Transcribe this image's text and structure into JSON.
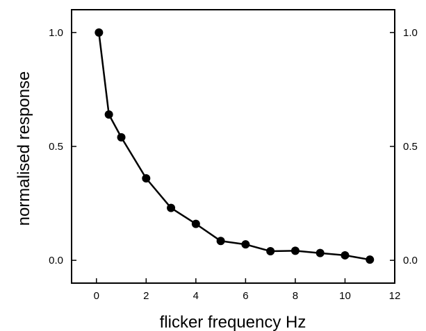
{
  "chart_data": {
    "type": "line",
    "title": "",
    "xlabel": "flicker frequency  Hz",
    "ylabel": "normalised response",
    "xlim": [
      -1,
      12
    ],
    "ylim": [
      -0.1,
      1.1
    ],
    "xticks": [
      0,
      2,
      4,
      6,
      8,
      10,
      12
    ],
    "xtick_labels": [
      "0",
      "2",
      "4",
      "6",
      "8",
      "10",
      "12"
    ],
    "yticks": [
      0.0,
      0.5,
      1.0
    ],
    "ytick_labels": [
      "0.0",
      "0.5",
      "1.0"
    ],
    "right_axis_labels": true,
    "grid": false,
    "series": [
      {
        "color": "#000000",
        "marker": "filled-circle",
        "x": [
          0.1,
          0.5,
          1,
          2,
          3,
          4,
          5,
          6,
          7,
          8,
          9,
          10,
          11
        ],
        "y": [
          1.0,
          0.64,
          0.54,
          0.36,
          0.23,
          0.16,
          0.085,
          0.07,
          0.04,
          0.042,
          0.032,
          0.022,
          0.003
        ]
      }
    ]
  }
}
